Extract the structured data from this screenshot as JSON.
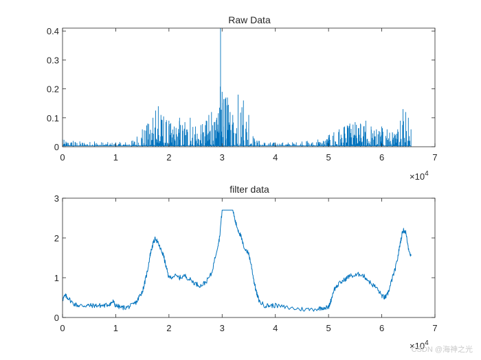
{
  "chart_data": [
    {
      "type": "line",
      "title": "Raw Data",
      "xlabel": "",
      "ylabel": "",
      "xlim": [
        0,
        70000
      ],
      "ylim": [
        0,
        0.41
      ],
      "x_ticks": [
        0,
        1,
        2,
        3,
        4,
        5,
        6,
        7
      ],
      "y_ticks": [
        0,
        0.1,
        0.2,
        0.3,
        0.4
      ],
      "x_exponent_base": "×10",
      "x_exponent": "4",
      "grid": false,
      "color": "#0072BD",
      "x_end": 65500,
      "envelope": {
        "x": [
          0,
          2000,
          6000,
          10000,
          13000,
          14000,
          15000,
          16000,
          17000,
          17500,
          18000,
          18500,
          19000,
          20000,
          21000,
          22000,
          23000,
          24000,
          25000,
          26000,
          27000,
          27500,
          28000,
          28500,
          29000,
          29500,
          29700,
          30000,
          30300,
          30700,
          31000,
          31500,
          32000,
          33000,
          34000,
          35000,
          36000,
          37000,
          40000,
          45000,
          46000,
          47000,
          48000,
          49000,
          50000,
          51000,
          52000,
          53000,
          54000,
          55000,
          56000,
          57000,
          58000,
          59000,
          60000,
          61000,
          62000,
          63000,
          63500,
          64000,
          64500,
          65000,
          65500
        ],
        "y": [
          0.025,
          0.02,
          0.018,
          0.015,
          0.02,
          0.035,
          0.06,
          0.08,
          0.1,
          0.125,
          0.14,
          0.11,
          0.105,
          0.09,
          0.07,
          0.1,
          0.085,
          0.1,
          0.07,
          0.075,
          0.09,
          0.11,
          0.12,
          0.085,
          0.1,
          0.135,
          0.41,
          0.19,
          0.165,
          0.17,
          0.17,
          0.12,
          0.11,
          0.18,
          0.16,
          0.11,
          0.03,
          0.02,
          0.015,
          0.018,
          0.02,
          0.015,
          0.025,
          0.02,
          0.04,
          0.05,
          0.06,
          0.07,
          0.08,
          0.085,
          0.08,
          0.09,
          0.07,
          0.06,
          0.07,
          0.06,
          0.05,
          0.06,
          0.09,
          0.13,
          0.12,
          0.1,
          0.06
        ]
      }
    },
    {
      "type": "line",
      "title": "filter data",
      "xlabel": "",
      "ylabel": "",
      "xlim": [
        0,
        70000
      ],
      "ylim": [
        0,
        3
      ],
      "x_ticks": [
        0,
        1,
        2,
        3,
        4,
        5,
        6,
        7
      ],
      "y_ticks": [
        0,
        1,
        2,
        3
      ],
      "x_exponent_base": "×10",
      "x_exponent": "4",
      "grid": false,
      "color": "#0072BD",
      "x": [
        0,
        500,
        1000,
        2000,
        3000,
        4000,
        5000,
        6000,
        7000,
        8000,
        9000,
        9500,
        10000,
        11000,
        12000,
        13000,
        14000,
        14500,
        15000,
        15500,
        16000,
        16500,
        17000,
        17500,
        18000,
        18500,
        19000,
        19500,
        20000,
        21000,
        22000,
        23000,
        24000,
        25000,
        26000,
        27000,
        28000,
        29000,
        29500,
        30000,
        30500,
        31000,
        32000,
        32500,
        33000,
        33500,
        34000,
        35000,
        35500,
        36000,
        36500,
        37000,
        38000,
        39000,
        40000,
        42000,
        44000,
        46000,
        48000,
        49000,
        50000,
        50500,
        51000,
        52000,
        53000,
        54000,
        55000,
        56000,
        57000,
        58000,
        59000,
        60000,
        60500,
        61000,
        61500,
        62000,
        62500,
        63000,
        63500,
        64000,
        64500,
        65000,
        65500
      ],
      "y": [
        0.45,
        0.55,
        0.5,
        0.35,
        0.3,
        0.3,
        0.3,
        0.3,
        0.3,
        0.3,
        0.35,
        0.4,
        0.3,
        0.25,
        0.25,
        0.3,
        0.4,
        0.55,
        0.65,
        0.9,
        1.2,
        1.6,
        1.85,
        2.0,
        1.85,
        1.7,
        1.55,
        1.25,
        1.0,
        1.05,
        1.0,
        1.05,
        0.95,
        0.85,
        0.8,
        0.9,
        1.1,
        1.7,
        2.0,
        2.7,
        2.7,
        2.7,
        2.7,
        2.4,
        2.2,
        2.05,
        1.8,
        1.6,
        1.3,
        0.9,
        0.6,
        0.4,
        0.3,
        0.3,
        0.3,
        0.25,
        0.22,
        0.2,
        0.22,
        0.25,
        0.25,
        0.45,
        0.7,
        0.85,
        0.95,
        1.05,
        1.05,
        1.1,
        1.0,
        0.85,
        0.75,
        0.55,
        0.5,
        0.55,
        0.75,
        1.0,
        1.2,
        1.5,
        1.9,
        2.2,
        2.15,
        1.75,
        1.55
      ]
    }
  ],
  "watermark": "CSDN @海神之光"
}
